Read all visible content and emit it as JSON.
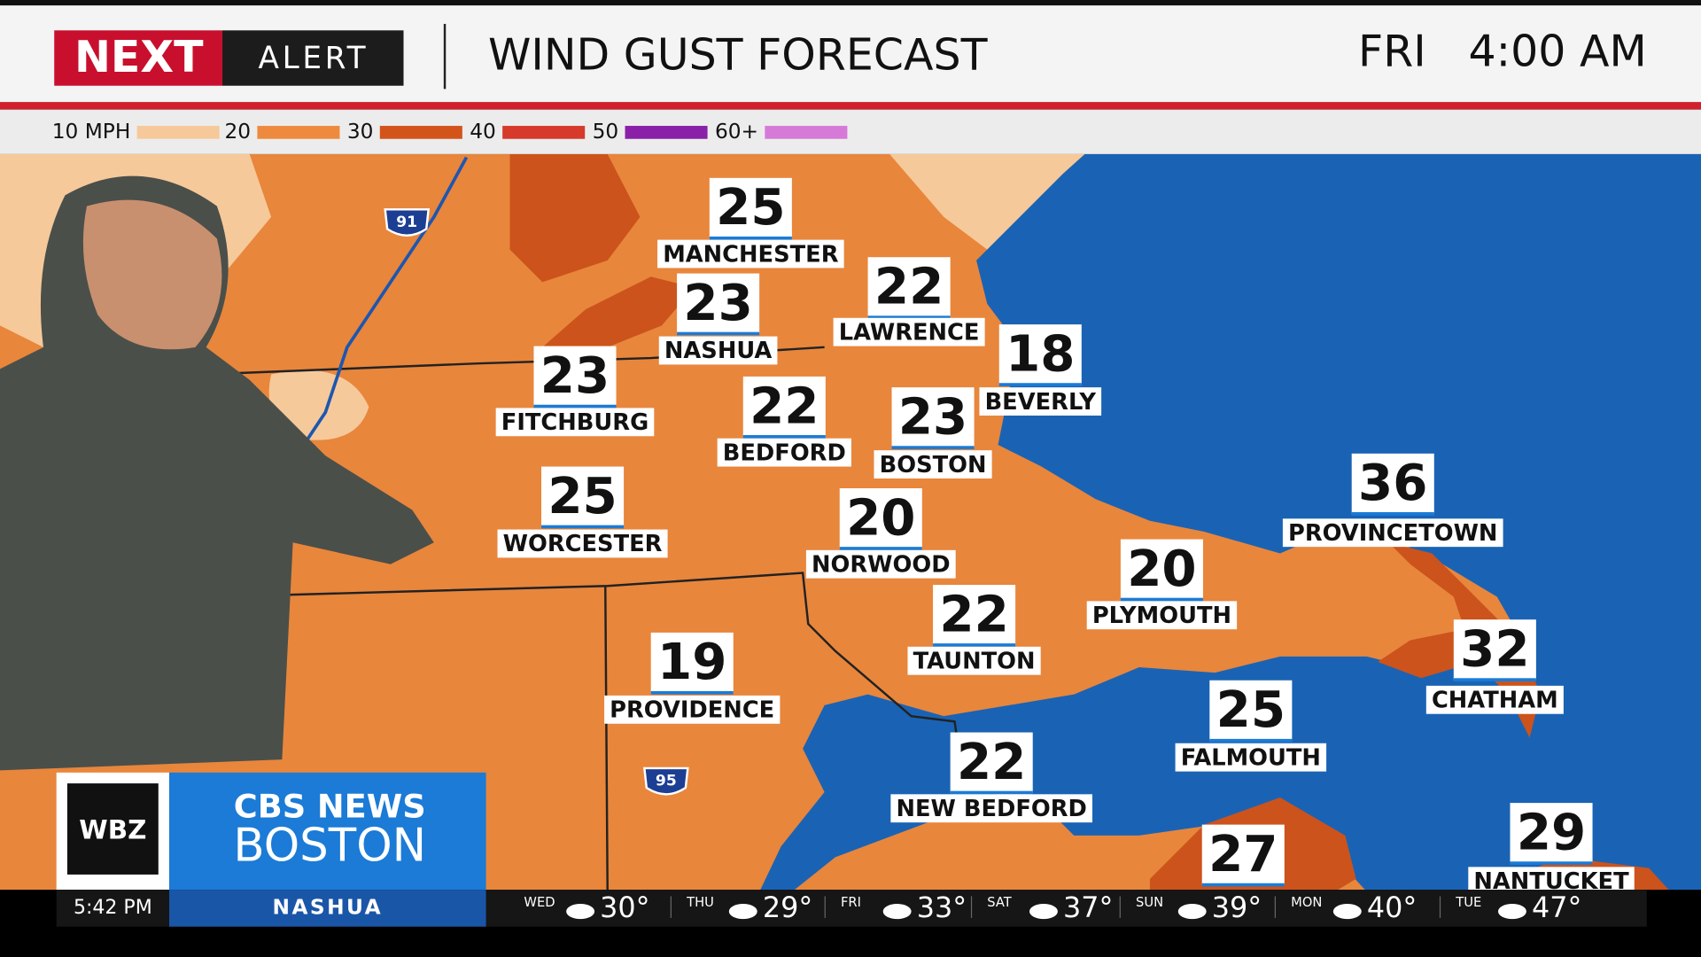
{
  "header": {
    "logo_next": "NEXT",
    "logo_alert": "ALERT",
    "title": "WIND GUST FORECAST",
    "day": "FRI",
    "time": "4:00 AM"
  },
  "legend": [
    {
      "label": "10 MPH",
      "color": "#f6c99a"
    },
    {
      "label": "20",
      "color": "#ee8a3e"
    },
    {
      "label": "30",
      "color": "#d2541a"
    },
    {
      "label": "40",
      "color": "#d63a2a"
    },
    {
      "label": "50",
      "color": "#8a1fa8"
    },
    {
      "label": "60+",
      "color": "#d67ad8"
    }
  ],
  "shields": [
    "91",
    "95"
  ],
  "cities": [
    {
      "name": "MANCHESTER",
      "value": 25
    },
    {
      "name": "NASHUA",
      "value": 23
    },
    {
      "name": "LAWRENCE",
      "value": 22
    },
    {
      "name": "FITCHBURG",
      "value": 23
    },
    {
      "name": "BEDFORD",
      "value": 22
    },
    {
      "name": "BEVERLY",
      "value": 18
    },
    {
      "name": "BOSTON",
      "value": 23
    },
    {
      "name": "WORCESTER",
      "value": 25
    },
    {
      "name": "NORWOOD",
      "value": 20
    },
    {
      "name": "PROVINCETOWN",
      "value": 36
    },
    {
      "name": "PLYMOUTH",
      "value": 20
    },
    {
      "name": "TAUNTON",
      "value": 22
    },
    {
      "name": "CHATHAM",
      "value": 32
    },
    {
      "name": "PROVIDENCE",
      "value": 19
    },
    {
      "name": "FALMOUTH",
      "value": 25
    },
    {
      "name": "NEW BEDFORD",
      "value": 22
    },
    {
      "name": "NANTUCKET",
      "value": 29
    },
    {
      "value": 27
    }
  ],
  "station": {
    "call": "WBZ",
    "network": "CBS NEWS",
    "city": "BOSTON"
  },
  "ticker": {
    "time": "5:42 PM",
    "location": "NASHUA",
    "days": [
      {
        "day": "WED",
        "temp": "30°"
      },
      {
        "day": "THU",
        "temp": "29°"
      },
      {
        "day": "FRI",
        "temp": "33°"
      },
      {
        "day": "SAT",
        "temp": "37°"
      },
      {
        "day": "SUN",
        "temp": "39°"
      },
      {
        "day": "MON",
        "temp": "40°"
      },
      {
        "day": "TUE",
        "temp": "47°"
      }
    ]
  }
}
